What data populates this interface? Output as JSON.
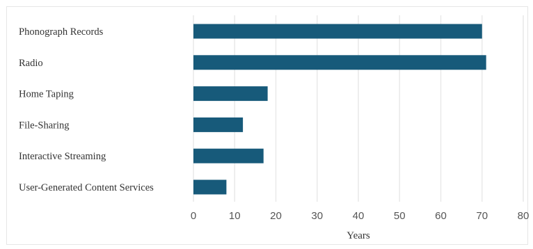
{
  "chart_data": {
    "type": "bar",
    "orientation": "horizontal",
    "categories": [
      "Phonograph Records",
      "Radio",
      "Home Taping",
      "File-Sharing",
      "Interactive Streaming",
      "User-Generated Content Services"
    ],
    "values": [
      70,
      71,
      18,
      12,
      17,
      8
    ],
    "xlabel": "Years",
    "ylabel": "",
    "title": "",
    "xlim": [
      0,
      80
    ],
    "xticks": [
      0,
      10,
      20,
      30,
      40,
      50,
      60,
      70,
      80
    ],
    "grid": "vertical",
    "legend": "none",
    "bar_color": "#175a7a"
  }
}
